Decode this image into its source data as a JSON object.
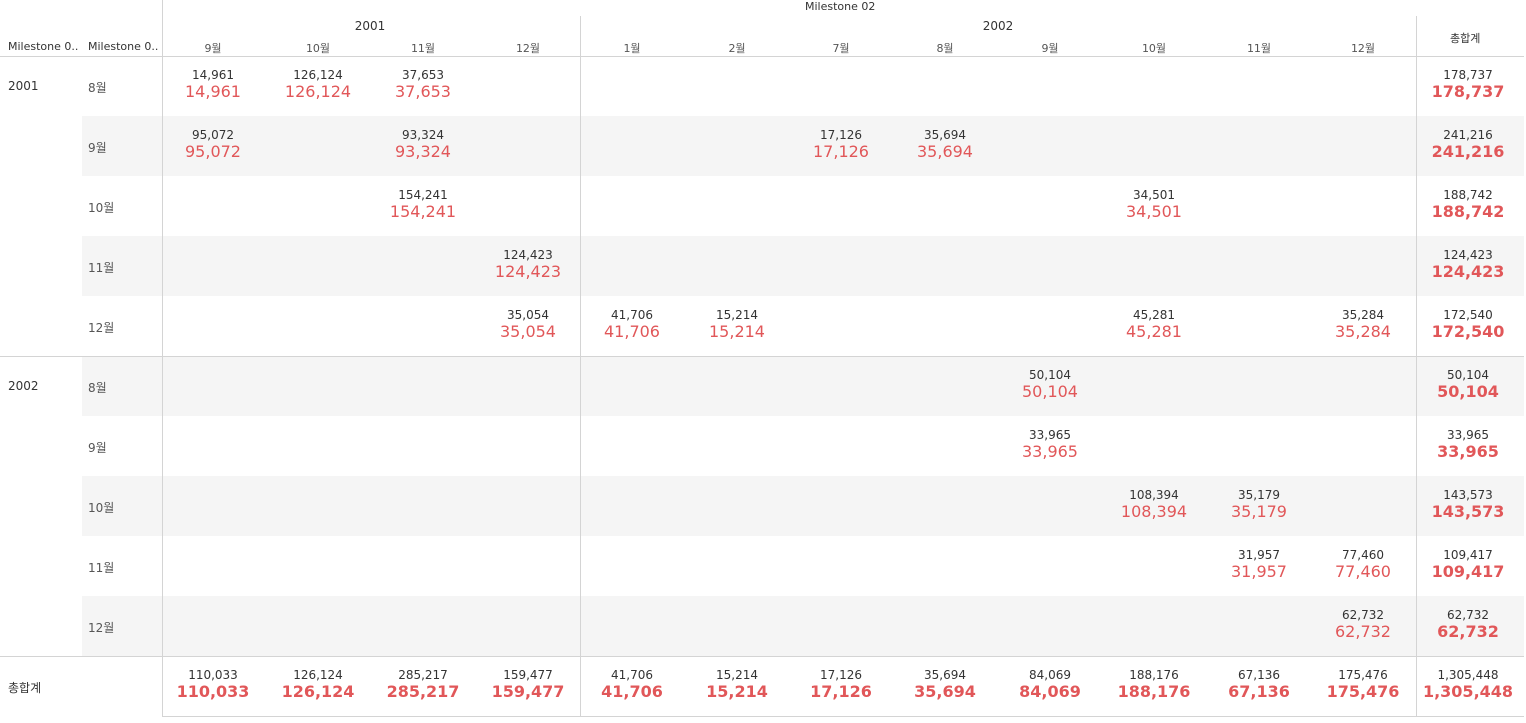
{
  "header": {
    "top_title": "Milestone 02",
    "row_header_1": "Milestone 0..",
    "row_header_2": "Milestone 0..",
    "total_label": "총합계"
  },
  "chart_data": {
    "type": "table",
    "column_groups": [
      {
        "year": "2001",
        "months": [
          "9월",
          "10월",
          "11월",
          "12월"
        ]
      },
      {
        "year": "2002",
        "months": [
          "1월",
          "2월",
          "7월",
          "8월",
          "9월",
          "10월",
          "11월",
          "12월"
        ]
      }
    ],
    "columns": [
      "9월",
      "10월",
      "11월",
      "12월",
      "1월",
      "2월",
      "7월",
      "8월",
      "9월",
      "10월",
      "11월",
      "12월"
    ],
    "row_groups": [
      {
        "year": "2001",
        "rows": [
          {
            "label": "8월",
            "values": [
              "14,961",
              "126,124",
              "37,653",
              "",
              "",
              "",
              "",
              "",
              "",
              "",
              "",
              ""
            ],
            "total": "178,737"
          },
          {
            "label": "9월",
            "values": [
              "95,072",
              "",
              "93,324",
              "",
              "",
              "",
              "17,126",
              "35,694",
              "",
              "",
              "",
              ""
            ],
            "total": "241,216"
          },
          {
            "label": "10월",
            "values": [
              "",
              "",
              "154,241",
              "",
              "",
              "",
              "",
              "",
              "",
              "34,501",
              "",
              ""
            ],
            "total": "188,742"
          },
          {
            "label": "11월",
            "values": [
              "",
              "",
              "",
              "124,423",
              "",
              "",
              "",
              "",
              "",
              "",
              "",
              ""
            ],
            "total": "124,423"
          },
          {
            "label": "12월",
            "values": [
              "",
              "",
              "",
              "35,054",
              "41,706",
              "15,214",
              "",
              "",
              "",
              "45,281",
              "",
              "35,284"
            ],
            "total": "172,540"
          }
        ]
      },
      {
        "year": "2002",
        "rows": [
          {
            "label": "8월",
            "values": [
              "",
              "",
              "",
              "",
              "",
              "",
              "",
              "",
              "50,104",
              "",
              "",
              ""
            ],
            "total": "50,104"
          },
          {
            "label": "9월",
            "values": [
              "",
              "",
              "",
              "",
              "",
              "",
              "",
              "",
              "33,965",
              "",
              "",
              ""
            ],
            "total": "33,965"
          },
          {
            "label": "10월",
            "values": [
              "",
              "",
              "",
              "",
              "",
              "",
              "",
              "",
              "",
              "108,394",
              "35,179",
              ""
            ],
            "total": "143,573"
          },
          {
            "label": "11월",
            "values": [
              "",
              "",
              "",
              "",
              "",
              "",
              "",
              "",
              "",
              "",
              "31,957",
              "77,460"
            ],
            "total": "109,417"
          },
          {
            "label": "12월",
            "values": [
              "",
              "",
              "",
              "",
              "",
              "",
              "",
              "",
              "",
              "",
              "",
              "62,732"
            ],
            "total": "62,732"
          }
        ]
      }
    ],
    "grand_total": {
      "label": "총합계",
      "values": [
        "110,033",
        "126,124",
        "285,217",
        "159,477",
        "41,706",
        "15,214",
        "17,126",
        "35,694",
        "84,069",
        "188,176",
        "67,136",
        "175,476"
      ],
      "total": "1,305,448"
    },
    "colors": {
      "primary_text": "#333333",
      "highlight_text": "#e15759",
      "band": "#f5f5f5",
      "grid": "#d4d4d4"
    }
  }
}
